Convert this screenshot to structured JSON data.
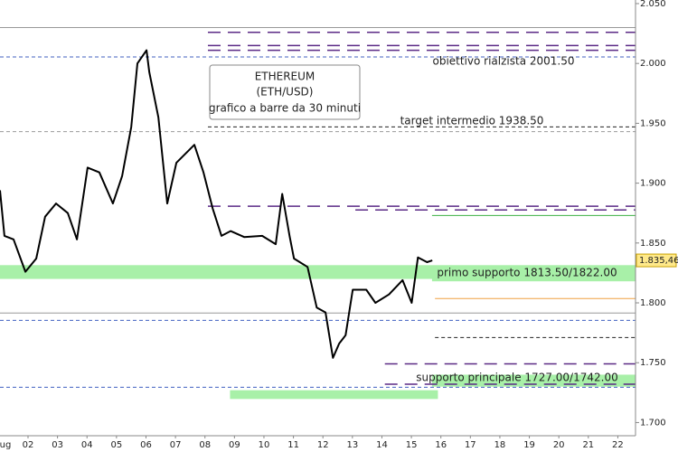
{
  "chart_data": {
    "type": "line",
    "title_lines": [
      "ETHEREUM",
      "(ETH/USD)",
      "grafico a barre da 30 minuti"
    ],
    "series": [
      {
        "color": "#000000",
        "x": [
          1.05,
          1.2,
          1.51,
          1.91,
          2.28,
          2.58,
          2.95,
          3.35,
          3.66,
          4.02,
          4.42,
          4.88,
          5.19,
          5.5,
          5.71,
          6.02,
          6.11,
          6.42,
          6.72,
          7.03,
          7.64,
          7.95,
          8.26,
          8.56,
          8.87,
          9.33,
          9.94,
          10.4,
          10.62,
          10.87,
          11.02,
          11.48,
          11.79,
          12.09,
          12.34,
          12.55,
          12.77,
          13.01,
          13.47,
          13.78,
          14.24,
          14.7,
          15.01,
          15.22,
          15.53,
          15.71
        ],
        "values": [
          1894,
          1856,
          1853,
          1826,
          1837,
          1872,
          1883,
          1875,
          1853,
          1913,
          1909,
          1883,
          1906,
          1947,
          2000,
          2011,
          1993,
          1955,
          1883,
          1917,
          1932,
          1909,
          1879,
          1856,
          1860,
          1855,
          1856,
          1849,
          1891,
          1856,
          1837,
          1830,
          1796,
          1792,
          1754,
          1766,
          1773,
          1811,
          1811,
          1800,
          1807,
          1819,
          1800,
          1838,
          1834,
          1835.46
        ]
      }
    ],
    "last_price": {
      "value": 1835.46,
      "label": "1.835,46",
      "color": "#ffe98a"
    },
    "levels": [
      {
        "value": 2030,
        "from": 1.05,
        "color": "#999999",
        "dash": false
      },
      {
        "value": 2026,
        "from": 8.1,
        "color": "#5b2a86",
        "dash": true
      },
      {
        "value": 2015,
        "from": 8.1,
        "color": "#5b2a86",
        "dash": true
      },
      {
        "value": 2011,
        "from": 8.1,
        "color": "#5b2a86",
        "dash": true
      },
      {
        "value": 2005.4,
        "from": 1.05,
        "color": "#4060c0",
        "dash": true
      },
      {
        "value": 1947,
        "from": 8.1,
        "color": "#222222",
        "dash": true
      },
      {
        "value": 1943,
        "from": 1.05,
        "color": "#999999",
        "dash": true
      },
      {
        "value": 1880.7,
        "from": 8.1,
        "color": "#5b2a86",
        "dash": true
      },
      {
        "value": 1877.6,
        "from": 13.1,
        "color": "#5b2a86",
        "dash": true
      },
      {
        "value": 1873,
        "from": 15.7,
        "color": "#3cb043",
        "dash": false
      },
      {
        "value": 1803.6,
        "from": 15.8,
        "color": "#f0a040",
        "dash": false
      },
      {
        "value": 1791.5,
        "from": 1.05,
        "color": "#999999",
        "dash": false
      },
      {
        "value": 1785.4,
        "from": 1.05,
        "color": "#4060c0",
        "dash": true
      },
      {
        "value": 1771,
        "from": 15.8,
        "color": "#222222",
        "dash": true
      },
      {
        "value": 1749,
        "from": 14.1,
        "color": "#5b2a86",
        "dash": true
      },
      {
        "value": 1732,
        "from": 14.1,
        "color": "#5b2a86",
        "dash": true
      },
      {
        "value": 1729.5,
        "from": 1.05,
        "color": "#4060c0",
        "dash": true
      }
    ],
    "bands": [
      {
        "low": 1820,
        "high": 1831.5,
        "from": 1.05,
        "to": 22.6
      },
      {
        "low": 1818,
        "high": 1828,
        "from": 15.7,
        "to": 22.6
      },
      {
        "low": 1730,
        "high": 1740,
        "from": 15.7,
        "to": 22.6
      },
      {
        "low": 1719.7,
        "high": 1727,
        "from": 8.85,
        "to": 15.9
      }
    ],
    "band_color": "#a8f0a8",
    "annotations": [
      "obiettivo rialzista 2001.50",
      "target intermedio 1938.50",
      "primo supporto 1813.50/1822.00",
      "supporto principale 1727.00/1742.00"
    ],
    "xlim": [
      1.05,
      22.6
    ],
    "xticks": [
      {
        "value": 1,
        "label": "ug"
      },
      {
        "value": 2,
        "label": "02"
      },
      {
        "value": 3,
        "label": "03"
      },
      {
        "value": 4,
        "label": "04"
      },
      {
        "value": 5,
        "label": "05"
      },
      {
        "value": 6,
        "label": "06"
      },
      {
        "value": 7,
        "label": "07"
      },
      {
        "value": 8,
        "label": "08"
      },
      {
        "value": 9,
        "label": "09"
      },
      10,
      11,
      12,
      13,
      14,
      15,
      16,
      17,
      18,
      19,
      20,
      21,
      22
    ],
    "ylim": [
      1689,
      2053
    ],
    "yticks": [
      {
        "value": 1700,
        "label": "1.700"
      },
      {
        "value": 1750,
        "label": "1.750"
      },
      {
        "value": 1800,
        "label": "1.800"
      },
      {
        "value": 1850,
        "label": "1.850"
      },
      {
        "value": 1900,
        "label": "1.900"
      },
      {
        "value": 1950,
        "label": "1.950"
      },
      {
        "value": 2000,
        "label": "2.000"
      },
      {
        "value": 2050,
        "label": "2.050"
      }
    ]
  }
}
